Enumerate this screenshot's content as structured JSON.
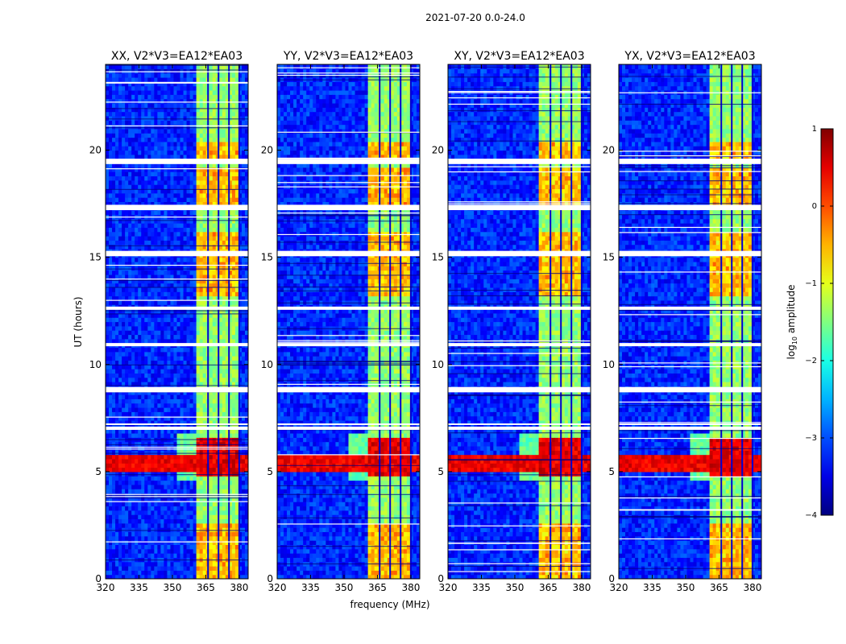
{
  "figure_title": "2021-07-20 0.0-24.0",
  "chart_data": {
    "type": "heatmap",
    "title": "2021-07-20 0.0-24.0",
    "xlabel": "frequency (MHz)",
    "ylabel": "UT (hours)",
    "xlim": [
      320,
      384
    ],
    "ylim": [
      0,
      24
    ],
    "x_ticks": [
      320,
      335,
      350,
      365,
      380
    ],
    "y_ticks": [
      0,
      5,
      10,
      15,
      20
    ],
    "colorbar": {
      "label": "log10 amplitude",
      "label_main": "log",
      "label_sub": "10",
      "label_tail": " amplitude",
      "range": [
        -4,
        1
      ],
      "ticks": [
        -4,
        -3,
        -2,
        -1,
        0,
        1
      ],
      "tick_labels": [
        "−4",
        "−3",
        "−2",
        "−1",
        "0",
        "1"
      ],
      "colormap": "jet"
    },
    "panels": [
      {
        "name": "XX",
        "title": "XX, V2*V3=EA12*EA03"
      },
      {
        "name": "YY",
        "title": "YY, V2*V3=EA12*EA03"
      },
      {
        "name": "XY",
        "title": "XY, V2*V3=EA12*EA03"
      },
      {
        "name": "YX",
        "title": "YX, V2*V3=EA12*EA03"
      }
    ],
    "features": {
      "rfi_band_mhz": [
        361,
        380
      ],
      "rfi_subband_gaps_mhz": [
        366,
        370.7,
        375.4,
        380
      ],
      "background_log10": -3.2,
      "rfi_band_log10": -1.4,
      "strong_event_ut": [
        4.8,
        6.5
      ],
      "strong_event_log10": 0.8,
      "broadband_event_ut": [
        5.0,
        5.8
      ],
      "enhanced_ut_ranges": [
        [
          0,
          2.6
        ],
        [
          13.2,
          16.2
        ],
        [
          17.5,
          19.3
        ],
        [
          19.7,
          20.4
        ]
      ],
      "flag_gaps_ut": [
        [
          8.7,
          8.95
        ],
        [
          10.85,
          11.0
        ],
        [
          12.55,
          12.7
        ],
        [
          15.05,
          15.3
        ],
        [
          17.2,
          17.45
        ],
        [
          19.35,
          19.6
        ],
        [
          6.95,
          7.1
        ],
        [
          7.2,
          7.25
        ]
      ]
    }
  }
}
